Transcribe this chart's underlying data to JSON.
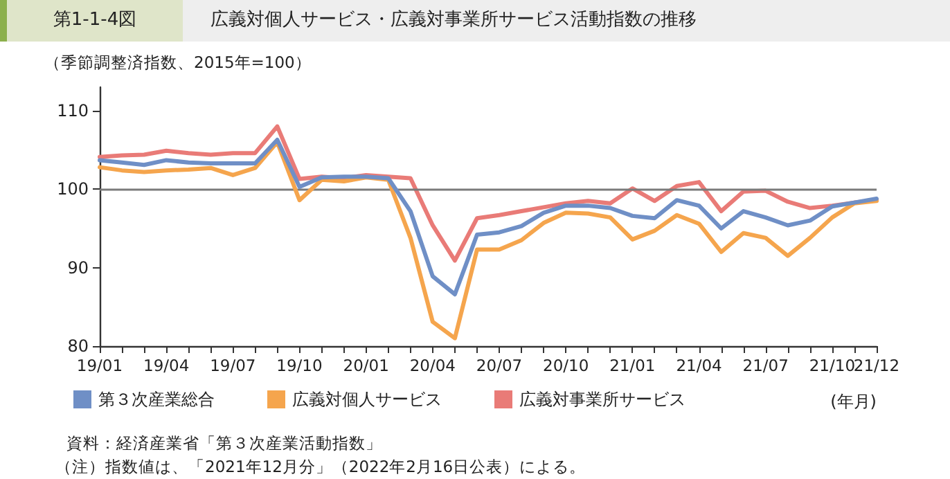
{
  "chart_data": {
    "type": "line",
    "title": "広義対個人サービス・広義対事業所サービス活動指数の推移",
    "ylabel": "（季節調整済指数、2015年=100）",
    "xlabel": "(年月)",
    "annotations": [
      "第1-1-4図",
      "資料：経済産業省「第３次産業活動指数」",
      "（注）指数値は、「2021年12月分」（2022年2月16日公表）による。"
    ],
    "categories": [
      "19/01",
      null,
      null,
      "19/04",
      null,
      null,
      "19/07",
      null,
      null,
      "19/10",
      null,
      null,
      "20/01",
      null,
      null,
      "20/04",
      null,
      null,
      "20/07",
      null,
      null,
      "20/10",
      null,
      null,
      "21/01",
      null,
      null,
      "21/04",
      null,
      null,
      "21/07",
      null,
      null,
      "21/10",
      null,
      "21/12"
    ],
    "series": [
      {
        "name": "第３次産業総合",
        "color": "#6f8fc6",
        "values": [
          103.7,
          103.4,
          103.1,
          103.7,
          103.4,
          103.3,
          103.3,
          103.3,
          106.3,
          100.3,
          101.5,
          101.6,
          101.6,
          101.4,
          97.2,
          88.9,
          86.6,
          94.2,
          94.5,
          95.3,
          97.0,
          97.9,
          97.9,
          97.6,
          96.6,
          96.3,
          98.6,
          97.9,
          95.0,
          97.2,
          96.4,
          95.4,
          96.0,
          97.8,
          98.3,
          98.8
        ]
      },
      {
        "name": "広義対個人サービス",
        "color": "#f5a54d",
        "values": [
          102.8,
          102.4,
          102.2,
          102.4,
          102.5,
          102.7,
          101.8,
          102.7,
          106.0,
          98.6,
          101.2,
          101.0,
          101.5,
          101.2,
          93.8,
          83.1,
          81.0,
          92.3,
          92.3,
          93.5,
          95.7,
          97.0,
          96.9,
          96.4,
          93.6,
          94.7,
          96.7,
          95.6,
          92.0,
          94.4,
          93.8,
          91.5,
          93.8,
          96.4,
          98.2,
          98.5
        ]
      },
      {
        "name": "広義対事業所サービス",
        "color": "#e97b77",
        "values": [
          104.1,
          104.3,
          104.4,
          104.9,
          104.6,
          104.4,
          104.6,
          104.6,
          108.0,
          101.3,
          101.6,
          101.4,
          101.8,
          101.6,
          101.4,
          95.4,
          90.9,
          96.3,
          96.7,
          97.2,
          97.7,
          98.2,
          98.5,
          98.2,
          100.1,
          98.5,
          100.4,
          100.9,
          97.2,
          99.7,
          99.8,
          98.4,
          97.6,
          97.9,
          98.3,
          98.6
        ]
      }
    ],
    "ylim": [
      80,
      113
    ],
    "yticks": [
      80,
      90,
      100,
      110
    ],
    "ref_lines": [
      {
        "axis": "y",
        "value": 100,
        "label": null,
        "color": "#7a7a7a"
      }
    ],
    "grid": false,
    "legend": "bottom left",
    "marker": "none",
    "line_style": "solid"
  }
}
